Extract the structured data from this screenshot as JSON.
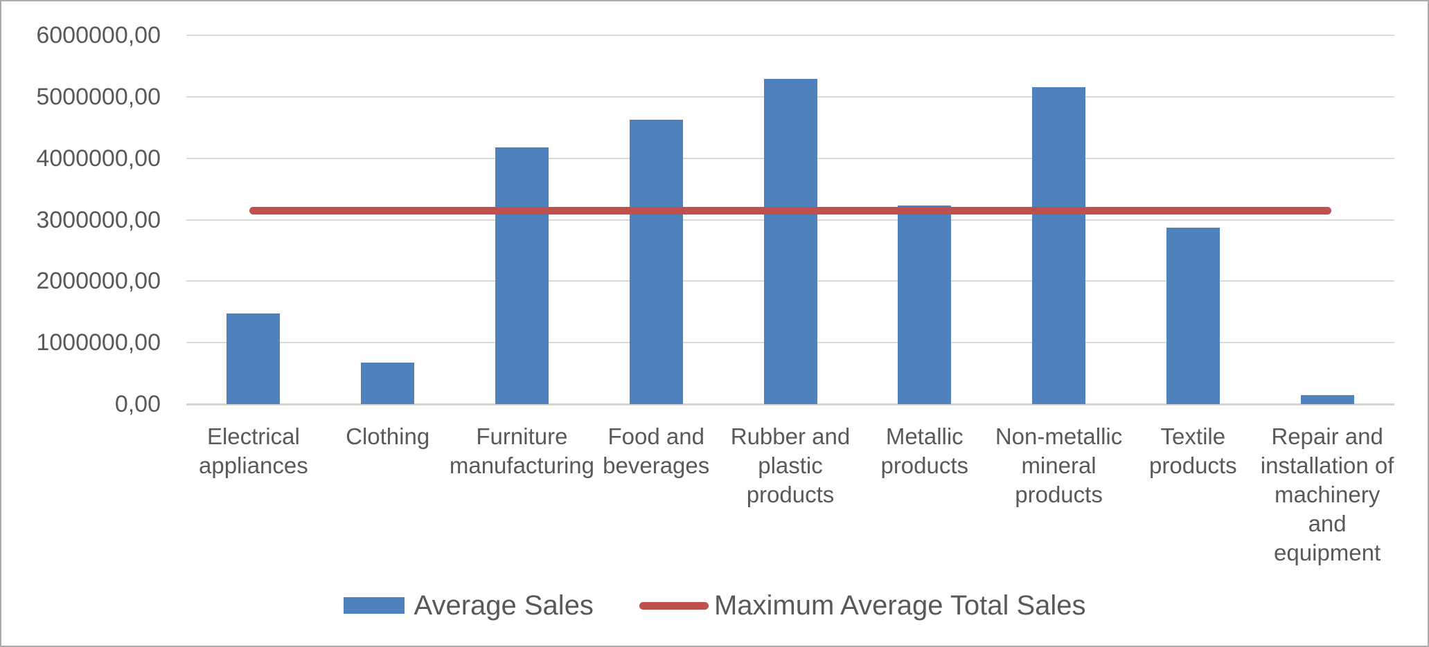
{
  "chart_data": {
    "type": "bar",
    "title": "",
    "categories": [
      "Electrical\nappliances",
      "Clothing",
      "Furniture\nmanufacturing",
      "Food and\nbeverages",
      "Rubber and\nplastic\nproducts",
      "Metallic\nproducts",
      "Non-metallic\nmineral\nproducts",
      "Textile\nproducts",
      "Repair and\ninstallation of\nmachinery\nand\nequipment"
    ],
    "series": [
      {
        "name": "Average Sales",
        "type": "bar",
        "color": "#4f81bd",
        "values": [
          1480000,
          675000,
          4180000,
          4630000,
          5290000,
          3230000,
          5160000,
          2870000,
          145000
        ]
      },
      {
        "name": "Maximum Average Total Sales",
        "type": "line",
        "color": "#c0504d",
        "value": 3150000
      }
    ],
    "y_axis": {
      "min": 0,
      "max": 6000000,
      "tick_step": 1000000,
      "tick_labels": [
        "0,00",
        "1000000,00",
        "2000000,00",
        "3000000,00",
        "4000000,00",
        "5000000,00",
        "6000000,00"
      ]
    },
    "grid": true,
    "legend_position": "bottom"
  },
  "style": {
    "bar_color": "#4f81bd",
    "line_color": "#c0504d",
    "gridline_color": "#d9d9d9",
    "axis_color": "#d3d3d3",
    "text_color": "#595959"
  }
}
